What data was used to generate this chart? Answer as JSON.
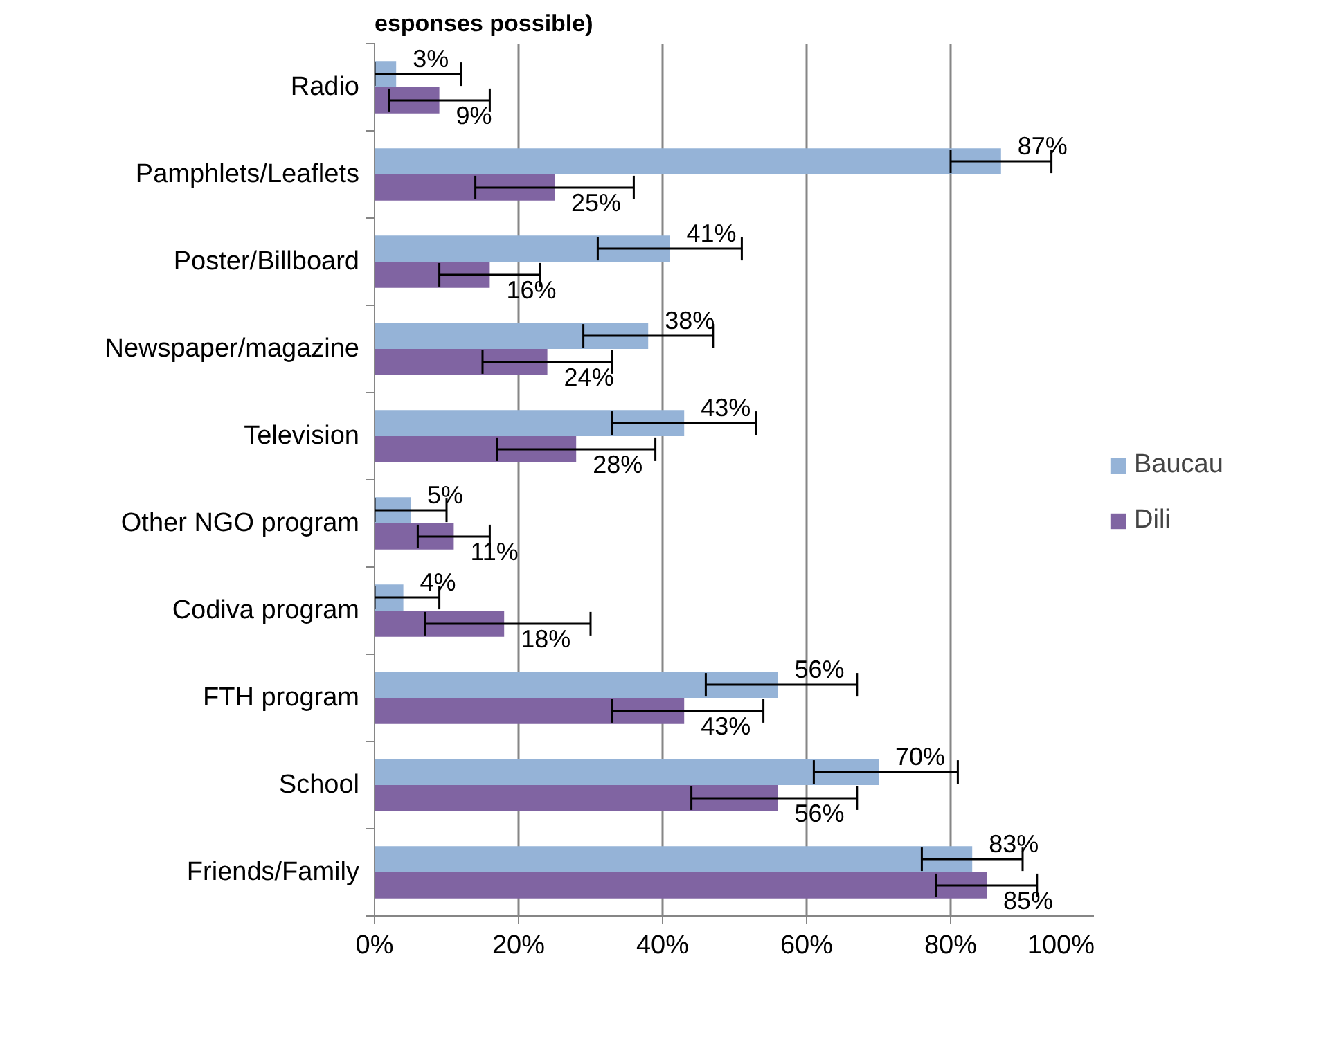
{
  "chart_data": {
    "type": "bar",
    "orientation": "horizontal",
    "title": "esponses possible)",
    "categories": [
      "Radio",
      "Pamphlets/Leaflets",
      "Poster/Billboard",
      "Newspaper/magazine",
      "Television",
      "Other NGO program",
      "Codiva program",
      "FTH program",
      "School",
      "Friends/Family"
    ],
    "series": [
      {
        "name": "Baucau",
        "color": "#95b3d7",
        "values": [
          3,
          87,
          41,
          38,
          43,
          5,
          4,
          56,
          70,
          83
        ],
        "value_labels": [
          "3%",
          "87%",
          "41%",
          "38%",
          "43%",
          "5%",
          "4%",
          "56%",
          "70%",
          "83%"
        ],
        "errors": [
          [
            0,
            12
          ],
          [
            80,
            94
          ],
          [
            31,
            51
          ],
          [
            29,
            47
          ],
          [
            33,
            53
          ],
          [
            0,
            10
          ],
          [
            0,
            9
          ],
          [
            46,
            67
          ],
          [
            61,
            81
          ],
          [
            76,
            90
          ]
        ]
      },
      {
        "name": "Dili",
        "color": "#8064a2",
        "values": [
          9,
          25,
          16,
          24,
          28,
          11,
          18,
          43,
          56,
          85
        ],
        "value_labels": [
          "9%",
          "25%",
          "16%",
          "24%",
          "28%",
          "11%",
          "18%",
          "43%",
          "56%",
          "85%"
        ],
        "errors": [
          [
            2,
            16
          ],
          [
            14,
            36
          ],
          [
            9,
            23
          ],
          [
            15,
            33
          ],
          [
            17,
            39
          ],
          [
            6,
            16
          ],
          [
            7,
            30
          ],
          [
            33,
            54
          ],
          [
            44,
            67
          ],
          [
            78,
            92
          ]
        ]
      }
    ],
    "xlim": [
      0,
      100
    ],
    "xticks": [
      {
        "value": 0,
        "label": "0%"
      },
      {
        "value": 20,
        "label": "20%"
      },
      {
        "value": 40,
        "label": "40%"
      },
      {
        "value": 60,
        "label": "60%"
      },
      {
        "value": 80,
        "label": "80%"
      },
      {
        "value": 100,
        "label": "100%"
      }
    ],
    "grid": "x",
    "legend": "right"
  }
}
